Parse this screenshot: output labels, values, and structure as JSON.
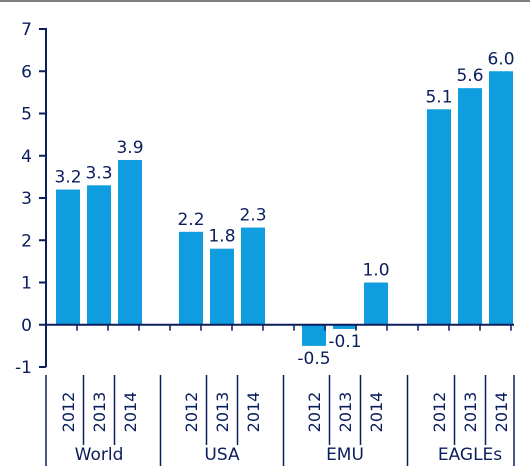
{
  "chart_data": {
    "type": "bar",
    "title": "",
    "xlabel": "",
    "ylabel": "",
    "ylim": [
      -1,
      7
    ],
    "yticks": [
      -1,
      0,
      1,
      2,
      3,
      4,
      5,
      6,
      7
    ],
    "ytick_labels": [
      "-1",
      "0",
      "1",
      "2",
      "3",
      "4",
      "5",
      "6",
      "7"
    ],
    "bar_color": "#0f9de0",
    "axis_color": "#0a1e5c",
    "text_color": "#0a1e5c",
    "grid": false,
    "legend": "none",
    "groups": [
      {
        "name": "World",
        "bars": [
          {
            "year": "2012",
            "value": 3.2,
            "label": "3.2"
          },
          {
            "year": "2013",
            "value": 3.3,
            "label": "3.3"
          },
          {
            "year": "2014",
            "value": 3.9,
            "label": "3.9"
          }
        ]
      },
      {
        "name": "USA",
        "bars": [
          {
            "year": "2012",
            "value": 2.2,
            "label": "2.2"
          },
          {
            "year": "2013",
            "value": 1.8,
            "label": "1.8"
          },
          {
            "year": "2014",
            "value": 2.3,
            "label": "2.3"
          }
        ]
      },
      {
        "name": "EMU",
        "bars": [
          {
            "year": "2012",
            "value": -0.5,
            "label": "-0.5"
          },
          {
            "year": "2013",
            "value": -0.1,
            "label": "-0.1"
          },
          {
            "year": "2014",
            "value": 1.0,
            "label": "1.0"
          }
        ]
      },
      {
        "name": "EAGLEs",
        "bars": [
          {
            "year": "2012",
            "value": 5.1,
            "label": "5.1"
          },
          {
            "year": "2013",
            "value": 5.6,
            "label": "5.6"
          },
          {
            "year": "2014",
            "value": 6.0,
            "label": "6.0"
          }
        ]
      }
    ]
  }
}
